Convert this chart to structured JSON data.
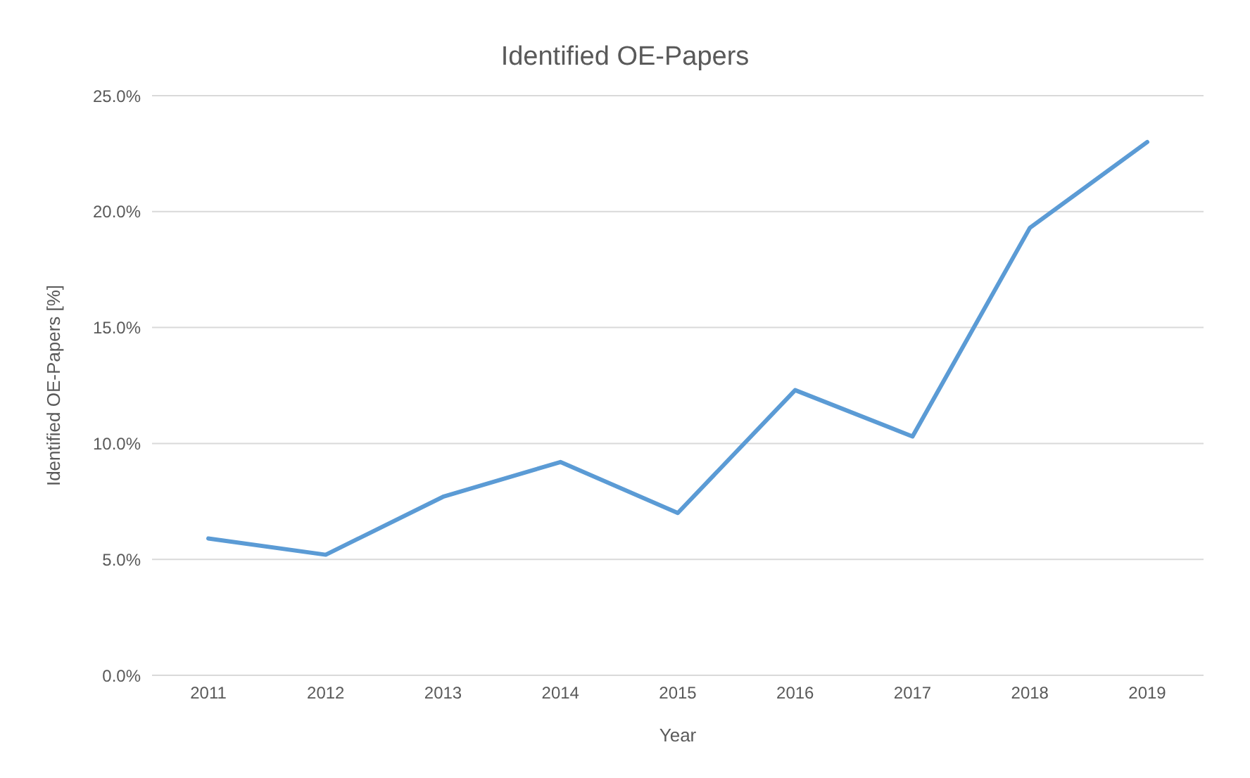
{
  "chart_data": {
    "type": "line",
    "title": "Identified OE-Papers",
    "xlabel": "Year",
    "ylabel": "Identified OE-Papers [%]",
    "categories": [
      "2011",
      "2012",
      "2013",
      "2014",
      "2015",
      "2016",
      "2017",
      "2018",
      "2019"
    ],
    "series": [
      {
        "color": "#5b9bd5",
        "values": [
          5.9,
          5.2,
          7.7,
          9.2,
          7.0,
          12.3,
          10.3,
          19.3,
          23.0
        ]
      }
    ],
    "ylim": [
      0,
      25
    ],
    "yticks": [
      {
        "value": 0,
        "label": "0.0%"
      },
      {
        "value": 5,
        "label": "5.0%"
      },
      {
        "value": 10,
        "label": "10.0%"
      },
      {
        "value": 15,
        "label": "15.0%"
      },
      {
        "value": 20,
        "label": "20.0%"
      },
      {
        "value": 25,
        "label": "25.0%"
      }
    ],
    "grid": "y",
    "legend": false,
    "marker": "none",
    "line_style": "solid"
  }
}
